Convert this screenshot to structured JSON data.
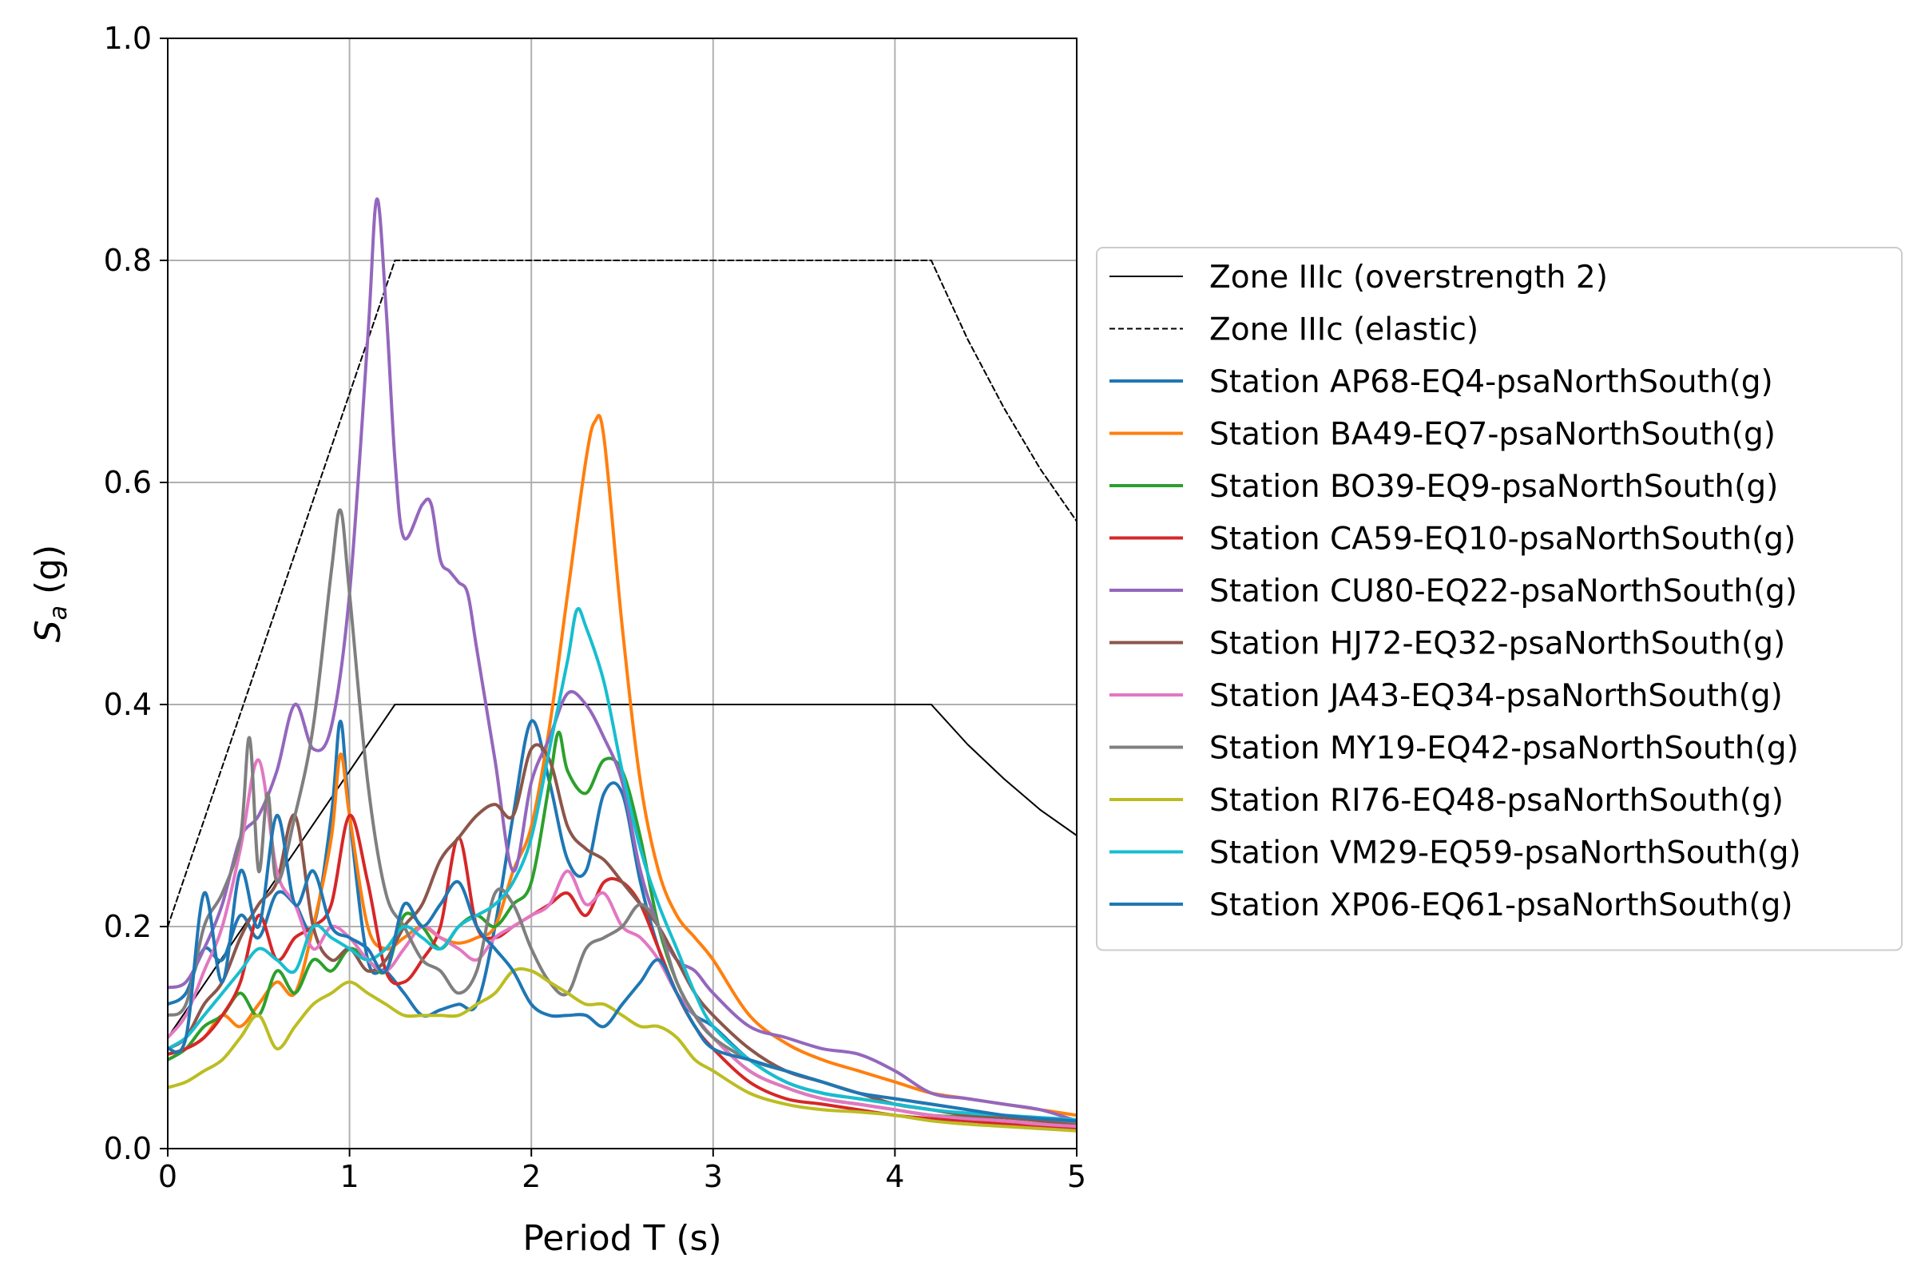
{
  "chart_data": {
    "type": "line",
    "title": "",
    "xlabel": "Period T (s)",
    "ylabel_main": "S",
    "ylabel_sub": "a",
    "ylabel_unit": " (g)",
    "xlim": [
      0,
      5
    ],
    "ylim": [
      0,
      1.0
    ],
    "xticks": [
      0,
      1,
      2,
      3,
      4,
      5
    ],
    "xtick_labels": [
      "0",
      "1",
      "2",
      "3",
      "4",
      "5"
    ],
    "yticks": [
      0,
      0.2,
      0.4,
      0.6,
      0.8,
      1.0
    ],
    "ytick_labels": [
      "0.0",
      "0.2",
      "0.4",
      "0.6",
      "0.8",
      "1.0"
    ],
    "grid": true,
    "legend_placement": "outside-right",
    "series": [
      {
        "name": "Zone IIIc (overstrength 2)",
        "color": "#000000",
        "dash": "solid",
        "width": 2,
        "x": [
          0,
          1.25,
          4.2,
          4.4,
          4.6,
          4.8,
          5.0
        ],
        "y": [
          0.1,
          0.4,
          0.4,
          0.364,
          0.333,
          0.305,
          0.282
        ]
      },
      {
        "name": "Zone IIIc (elastic)",
        "color": "#000000",
        "dash": "dashed",
        "width": 2,
        "x": [
          0,
          1.25,
          4.2,
          4.4,
          4.6,
          4.8,
          5.0
        ],
        "y": [
          0.2,
          0.8,
          0.8,
          0.729,
          0.667,
          0.612,
          0.565
        ]
      },
      {
        "name": "Station AP68-EQ4-psaNorthSouth(g)",
        "color": "#1f77b4",
        "dash": "solid",
        "width": 4,
        "x": [
          0,
          0.1,
          0.2,
          0.3,
          0.4,
          0.5,
          0.6,
          0.7,
          0.8,
          0.9,
          0.95,
          1.0,
          1.1,
          1.2,
          1.3,
          1.4,
          1.5,
          1.6,
          1.7,
          1.8,
          1.9,
          2.0,
          2.1,
          2.2,
          2.3,
          2.4,
          2.5,
          2.6,
          2.7,
          2.8,
          2.9,
          3.0,
          3.2,
          3.4,
          3.6,
          3.8,
          4.0,
          4.2,
          4.4,
          4.6,
          4.8,
          5.0
        ],
        "y": [
          0.13,
          0.14,
          0.18,
          0.17,
          0.21,
          0.19,
          0.23,
          0.22,
          0.2,
          0.3,
          0.385,
          0.3,
          0.17,
          0.16,
          0.14,
          0.12,
          0.125,
          0.13,
          0.13,
          0.2,
          0.3,
          0.385,
          0.33,
          0.26,
          0.25,
          0.32,
          0.32,
          0.24,
          0.18,
          0.14,
          0.12,
          0.11,
          0.08,
          0.06,
          0.05,
          0.045,
          0.04,
          0.035,
          0.03,
          0.028,
          0.026,
          0.024
        ]
      },
      {
        "name": "Station BA49-EQ7-psaNorthSouth(g)",
        "color": "#ff7f0e",
        "dash": "solid",
        "width": 4,
        "x": [
          0,
          0.1,
          0.2,
          0.3,
          0.4,
          0.5,
          0.6,
          0.7,
          0.8,
          0.9,
          0.95,
          1.0,
          1.1,
          1.2,
          1.3,
          1.4,
          1.5,
          1.6,
          1.7,
          1.8,
          1.9,
          2.0,
          2.1,
          2.2,
          2.3,
          2.35,
          2.4,
          2.5,
          2.6,
          2.7,
          2.8,
          2.9,
          3.0,
          3.2,
          3.4,
          3.6,
          3.8,
          4.0,
          4.2,
          4.4,
          4.6,
          4.8,
          5.0
        ],
        "y": [
          0.085,
          0.09,
          0.1,
          0.12,
          0.11,
          0.13,
          0.15,
          0.14,
          0.2,
          0.28,
          0.355,
          0.3,
          0.2,
          0.18,
          0.19,
          0.2,
          0.19,
          0.185,
          0.19,
          0.2,
          0.25,
          0.29,
          0.38,
          0.5,
          0.62,
          0.655,
          0.64,
          0.47,
          0.33,
          0.25,
          0.21,
          0.19,
          0.17,
          0.12,
          0.095,
          0.08,
          0.07,
          0.06,
          0.05,
          0.045,
          0.04,
          0.035,
          0.03
        ]
      },
      {
        "name": "Station BO39-EQ9-psaNorthSouth(g)",
        "color": "#2ca02c",
        "dash": "solid",
        "width": 4,
        "x": [
          0,
          0.1,
          0.2,
          0.3,
          0.4,
          0.5,
          0.6,
          0.7,
          0.8,
          0.9,
          1.0,
          1.1,
          1.2,
          1.3,
          1.4,
          1.5,
          1.6,
          1.7,
          1.8,
          1.9,
          2.0,
          2.1,
          2.15,
          2.2,
          2.3,
          2.4,
          2.5,
          2.6,
          2.7,
          2.8,
          2.9,
          3.0,
          3.2,
          3.4,
          3.6,
          3.8,
          4.0,
          4.2,
          4.4,
          4.6,
          4.8,
          5.0
        ],
        "y": [
          0.08,
          0.09,
          0.11,
          0.12,
          0.14,
          0.12,
          0.16,
          0.14,
          0.17,
          0.16,
          0.18,
          0.17,
          0.16,
          0.21,
          0.2,
          0.18,
          0.2,
          0.21,
          0.2,
          0.22,
          0.24,
          0.33,
          0.375,
          0.34,
          0.32,
          0.35,
          0.34,
          0.28,
          0.2,
          0.15,
          0.12,
          0.1,
          0.07,
          0.055,
          0.045,
          0.04,
          0.035,
          0.03,
          0.028,
          0.025,
          0.022,
          0.02
        ]
      },
      {
        "name": "Station CA59-EQ10-psaNorthSouth(g)",
        "color": "#d62728",
        "dash": "solid",
        "width": 4,
        "x": [
          0,
          0.1,
          0.2,
          0.3,
          0.4,
          0.5,
          0.6,
          0.7,
          0.8,
          0.9,
          1.0,
          1.1,
          1.2,
          1.3,
          1.4,
          1.5,
          1.6,
          1.7,
          1.8,
          1.9,
          2.0,
          2.1,
          2.2,
          2.3,
          2.4,
          2.5,
          2.6,
          2.7,
          2.8,
          2.9,
          3.0,
          3.2,
          3.4,
          3.6,
          3.8,
          4.0,
          4.2,
          4.4,
          4.6,
          4.8,
          5.0
        ],
        "y": [
          0.085,
          0.09,
          0.1,
          0.12,
          0.15,
          0.21,
          0.17,
          0.19,
          0.2,
          0.22,
          0.3,
          0.24,
          0.16,
          0.15,
          0.17,
          0.2,
          0.28,
          0.2,
          0.19,
          0.2,
          0.21,
          0.22,
          0.23,
          0.21,
          0.24,
          0.24,
          0.22,
          0.18,
          0.14,
          0.11,
          0.09,
          0.06,
          0.045,
          0.04,
          0.035,
          0.03,
          0.027,
          0.025,
          0.022,
          0.02,
          0.018
        ]
      },
      {
        "name": "Station CU80-EQ22-psaNorthSouth(g)",
        "color": "#9467bd",
        "dash": "solid",
        "width": 4,
        "x": [
          0,
          0.1,
          0.2,
          0.3,
          0.4,
          0.5,
          0.6,
          0.7,
          0.8,
          0.9,
          1.0,
          1.1,
          1.15,
          1.2,
          1.25,
          1.3,
          1.4,
          1.45,
          1.5,
          1.55,
          1.6,
          1.65,
          1.7,
          1.8,
          1.9,
          2.0,
          2.1,
          2.2,
          2.3,
          2.4,
          2.5,
          2.6,
          2.7,
          2.8,
          2.9,
          3.0,
          3.2,
          3.4,
          3.6,
          3.8,
          4.0,
          4.2,
          4.4,
          4.6,
          4.8,
          5.0
        ],
        "y": [
          0.145,
          0.15,
          0.18,
          0.22,
          0.28,
          0.3,
          0.34,
          0.4,
          0.36,
          0.38,
          0.5,
          0.73,
          0.855,
          0.76,
          0.62,
          0.55,
          0.58,
          0.58,
          0.53,
          0.52,
          0.51,
          0.5,
          0.45,
          0.35,
          0.25,
          0.33,
          0.37,
          0.41,
          0.4,
          0.37,
          0.33,
          0.25,
          0.2,
          0.17,
          0.16,
          0.14,
          0.11,
          0.1,
          0.09,
          0.085,
          0.07,
          0.05,
          0.045,
          0.04,
          0.035,
          0.025
        ]
      },
      {
        "name": "Station HJ72-EQ32-psaNorthSouth(g)",
        "color": "#8c564b",
        "dash": "solid",
        "width": 4,
        "x": [
          0,
          0.1,
          0.2,
          0.3,
          0.4,
          0.5,
          0.6,
          0.7,
          0.8,
          0.9,
          1.0,
          1.1,
          1.2,
          1.3,
          1.4,
          1.5,
          1.6,
          1.7,
          1.8,
          1.9,
          2.0,
          2.1,
          2.2,
          2.3,
          2.4,
          2.5,
          2.6,
          2.7,
          2.8,
          2.9,
          3.0,
          3.2,
          3.4,
          3.6,
          3.8,
          4.0,
          4.2,
          4.4,
          4.6,
          4.8,
          5.0
        ],
        "y": [
          0.09,
          0.1,
          0.13,
          0.15,
          0.19,
          0.22,
          0.24,
          0.3,
          0.2,
          0.17,
          0.18,
          0.16,
          0.17,
          0.2,
          0.22,
          0.26,
          0.28,
          0.3,
          0.31,
          0.3,
          0.36,
          0.35,
          0.29,
          0.27,
          0.26,
          0.24,
          0.22,
          0.2,
          0.17,
          0.14,
          0.12,
          0.09,
          0.07,
          0.06,
          0.05,
          0.04,
          0.035,
          0.03,
          0.028,
          0.025,
          0.022
        ]
      },
      {
        "name": "Station JA43-EQ34-psaNorthSouth(g)",
        "color": "#e377c2",
        "dash": "solid",
        "width": 4,
        "x": [
          0,
          0.1,
          0.2,
          0.3,
          0.4,
          0.5,
          0.6,
          0.7,
          0.8,
          0.9,
          1.0,
          1.1,
          1.2,
          1.3,
          1.4,
          1.5,
          1.6,
          1.7,
          1.8,
          1.9,
          2.0,
          2.1,
          2.2,
          2.3,
          2.4,
          2.5,
          2.6,
          2.7,
          2.8,
          2.9,
          3.0,
          3.2,
          3.4,
          3.6,
          3.8,
          4.0,
          4.2,
          4.4,
          4.6,
          4.8,
          5.0
        ],
        "y": [
          0.1,
          0.12,
          0.16,
          0.2,
          0.27,
          0.35,
          0.25,
          0.22,
          0.18,
          0.2,
          0.19,
          0.17,
          0.16,
          0.18,
          0.2,
          0.19,
          0.18,
          0.17,
          0.19,
          0.2,
          0.21,
          0.22,
          0.25,
          0.22,
          0.23,
          0.2,
          0.19,
          0.17,
          0.14,
          0.12,
          0.1,
          0.07,
          0.055,
          0.045,
          0.04,
          0.035,
          0.03,
          0.027,
          0.025,
          0.022,
          0.02
        ]
      },
      {
        "name": "Station MY19-EQ42-psaNorthSouth(g)",
        "color": "#7f7f7f",
        "dash": "solid",
        "width": 4,
        "x": [
          0,
          0.1,
          0.2,
          0.3,
          0.4,
          0.45,
          0.5,
          0.55,
          0.6,
          0.7,
          0.8,
          0.9,
          0.95,
          1.0,
          1.1,
          1.2,
          1.3,
          1.4,
          1.5,
          1.6,
          1.7,
          1.8,
          1.9,
          2.0,
          2.1,
          2.2,
          2.3,
          2.4,
          2.5,
          2.6,
          2.7,
          2.8,
          2.9,
          3.0,
          3.2,
          3.4,
          3.6,
          3.8,
          4.0,
          4.2,
          4.4,
          4.6,
          4.8,
          5.0
        ],
        "y": [
          0.12,
          0.13,
          0.2,
          0.23,
          0.28,
          0.37,
          0.25,
          0.32,
          0.24,
          0.3,
          0.38,
          0.52,
          0.575,
          0.5,
          0.33,
          0.23,
          0.2,
          0.17,
          0.16,
          0.14,
          0.16,
          0.23,
          0.22,
          0.18,
          0.15,
          0.14,
          0.18,
          0.19,
          0.2,
          0.22,
          0.2,
          0.15,
          0.12,
          0.1,
          0.08,
          0.07,
          0.06,
          0.05,
          0.045,
          0.04,
          0.035,
          0.03,
          0.027,
          0.024
        ]
      },
      {
        "name": "Station RI76-EQ48-psaNorthSouth(g)",
        "color": "#bcbd22",
        "dash": "solid",
        "width": 4,
        "x": [
          0,
          0.1,
          0.2,
          0.3,
          0.4,
          0.5,
          0.6,
          0.7,
          0.8,
          0.9,
          1.0,
          1.1,
          1.2,
          1.3,
          1.4,
          1.5,
          1.6,
          1.7,
          1.8,
          1.9,
          2.0,
          2.1,
          2.2,
          2.3,
          2.4,
          2.5,
          2.6,
          2.7,
          2.8,
          2.9,
          3.0,
          3.2,
          3.4,
          3.6,
          3.8,
          4.0,
          4.2,
          4.4,
          4.6,
          4.8,
          5.0
        ],
        "y": [
          0.055,
          0.06,
          0.07,
          0.08,
          0.1,
          0.12,
          0.09,
          0.11,
          0.13,
          0.14,
          0.15,
          0.14,
          0.13,
          0.12,
          0.12,
          0.12,
          0.12,
          0.13,
          0.14,
          0.16,
          0.16,
          0.15,
          0.14,
          0.13,
          0.13,
          0.12,
          0.11,
          0.11,
          0.1,
          0.08,
          0.07,
          0.05,
          0.04,
          0.035,
          0.033,
          0.03,
          0.025,
          0.022,
          0.02,
          0.018,
          0.016
        ]
      },
      {
        "name": "Station VM29-EQ59-psaNorthSouth(g)",
        "color": "#17becf",
        "dash": "solid",
        "width": 4,
        "x": [
          0,
          0.1,
          0.2,
          0.3,
          0.4,
          0.5,
          0.6,
          0.7,
          0.8,
          0.9,
          1.0,
          1.1,
          1.2,
          1.3,
          1.4,
          1.5,
          1.6,
          1.7,
          1.8,
          1.9,
          2.0,
          2.1,
          2.2,
          2.25,
          2.3,
          2.4,
          2.5,
          2.6,
          2.7,
          2.8,
          2.9,
          3.0,
          3.2,
          3.4,
          3.6,
          3.8,
          4.0,
          4.2,
          4.4,
          4.6,
          4.8,
          5.0
        ],
        "y": [
          0.09,
          0.1,
          0.12,
          0.14,
          0.16,
          0.18,
          0.17,
          0.16,
          0.2,
          0.19,
          0.18,
          0.17,
          0.18,
          0.2,
          0.19,
          0.18,
          0.2,
          0.21,
          0.22,
          0.24,
          0.28,
          0.36,
          0.44,
          0.485,
          0.47,
          0.42,
          0.34,
          0.27,
          0.22,
          0.18,
          0.14,
          0.11,
          0.08,
          0.06,
          0.05,
          0.045,
          0.04,
          0.035,
          0.032,
          0.03,
          0.028,
          0.026
        ]
      },
      {
        "name": "Station XP06-EQ61-psaNorthSouth(g)",
        "color": "#1f77b4",
        "dash": "solid",
        "width": 4,
        "x": [
          0,
          0.1,
          0.2,
          0.3,
          0.4,
          0.5,
          0.6,
          0.7,
          0.8,
          0.9,
          1.0,
          1.1,
          1.2,
          1.3,
          1.4,
          1.5,
          1.6,
          1.7,
          1.8,
          1.9,
          2.0,
          2.1,
          2.2,
          2.3,
          2.4,
          2.5,
          2.6,
          2.7,
          2.8,
          2.9,
          3.0,
          3.2,
          3.4,
          3.6,
          3.8,
          4.0,
          4.2,
          4.4,
          4.6,
          4.8,
          5.0
        ],
        "y": [
          0.09,
          0.1,
          0.23,
          0.15,
          0.25,
          0.2,
          0.3,
          0.22,
          0.25,
          0.2,
          0.19,
          0.18,
          0.16,
          0.22,
          0.2,
          0.22,
          0.24,
          0.2,
          0.18,
          0.16,
          0.13,
          0.12,
          0.12,
          0.12,
          0.11,
          0.13,
          0.15,
          0.17,
          0.14,
          0.11,
          0.09,
          0.08,
          0.07,
          0.06,
          0.05,
          0.045,
          0.04,
          0.035,
          0.03,
          0.027,
          0.025
        ]
      }
    ]
  }
}
